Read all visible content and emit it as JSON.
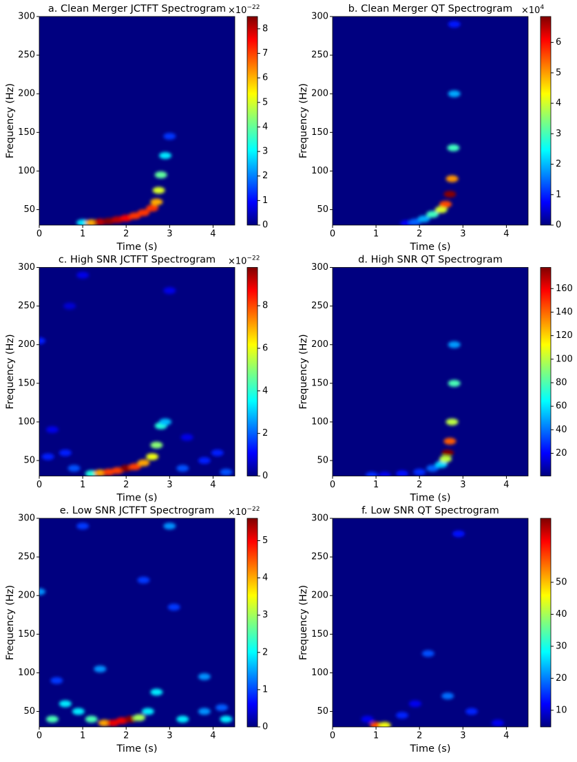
{
  "chart_data": [
    {
      "type": "spectrogram",
      "title": "a. Clean Merger JCTFT Spectrogram",
      "xlabel": "Time (s)",
      "ylabel": "Frequency (Hz)",
      "xlim": [
        0,
        4.5
      ],
      "xticks": [
        0,
        1,
        2,
        3,
        4
      ],
      "ylim": [
        30,
        300
      ],
      "yticks": [
        50,
        100,
        150,
        200,
        250,
        300
      ],
      "clim": [
        0,
        8.5
      ],
      "cticks": [
        0,
        1,
        2,
        3,
        4,
        5,
        6,
        7,
        8
      ],
      "colorbar_offset": {
        "base": "×10",
        "exponent": "−22"
      },
      "peaks": {
        "t": [
          1.0,
          1.2,
          1.4,
          1.6,
          1.8,
          2.0,
          2.2,
          2.4,
          2.6,
          2.7,
          2.75,
          2.8,
          2.9,
          3.0
        ],
        "f": [
          33,
          33,
          34,
          35,
          37,
          39,
          42,
          46,
          52,
          60,
          75,
          95,
          120,
          145
        ],
        "power": [
          3,
          6,
          8,
          8.4,
          8,
          7.5,
          7,
          7,
          7,
          6,
          5,
          4,
          3,
          1.5
        ]
      }
    },
    {
      "type": "spectrogram",
      "title": "b. Clean Merger QT Spectrogram",
      "xlabel": "Time (s)",
      "ylabel": "Frequency (Hz)",
      "xlim": [
        0,
        4.5
      ],
      "xticks": [
        0,
        1,
        2,
        3,
        4
      ],
      "ylim": [
        30,
        300
      ],
      "yticks": [
        50,
        100,
        150,
        200,
        250,
        300
      ],
      "clim": [
        0,
        6.85
      ],
      "cticks": [
        0,
        1,
        2,
        3,
        4,
        5,
        6
      ],
      "colorbar_offset": {
        "base": "×10",
        "exponent": "4"
      },
      "peaks": {
        "t": [
          1.7,
          1.9,
          2.1,
          2.3,
          2.5,
          2.6,
          2.7,
          2.75,
          2.78,
          2.8,
          2.8
        ],
        "f": [
          32,
          34,
          38,
          44,
          50,
          57,
          70,
          90,
          130,
          200,
          290
        ],
        "power": [
          0.8,
          1.5,
          2,
          3,
          4,
          5.5,
          6.8,
          5,
          3,
          2,
          1
        ]
      }
    },
    {
      "type": "spectrogram",
      "title": "c. High SNR JCTFT Spectrogram",
      "xlabel": "Time (s)",
      "ylabel": "Frequency (Hz)",
      "xlim": [
        0,
        4.5
      ],
      "xticks": [
        0,
        1,
        2,
        3,
        4
      ],
      "ylim": [
        30,
        300
      ],
      "yticks": [
        50,
        100,
        150,
        200,
        250,
        300
      ],
      "clim": [
        0,
        9.8
      ],
      "cticks": [
        0,
        2,
        4,
        6,
        8
      ],
      "colorbar_offset": {
        "base": "×10",
        "exponent": "−22"
      },
      "peaks": {
        "t": [
          1.2,
          1.4,
          1.6,
          1.8,
          2.0,
          2.2,
          2.4,
          2.6,
          2.7,
          2.8,
          2.9,
          0.2,
          0.6,
          0.8,
          0.3,
          3.3,
          3.8,
          4.1,
          4.3,
          0.0,
          1.0,
          3.0,
          3.4,
          0.7
        ],
        "f": [
          33,
          34,
          35,
          37,
          40,
          42,
          47,
          55,
          70,
          95,
          100,
          55,
          60,
          40,
          90,
          40,
          50,
          60,
          35,
          205,
          290,
          270,
          80,
          250
        ],
        "power": [
          4,
          7,
          8,
          8,
          9.7,
          8,
          7,
          6,
          5,
          4,
          3,
          1.5,
          1.5,
          2,
          1,
          2,
          1.5,
          1.5,
          2,
          1.5,
          1,
          1,
          1,
          0.8
        ]
      }
    },
    {
      "type": "spectrogram",
      "title": "d. High SNR QT Spectrogram",
      "xlabel": "Time (s)",
      "ylabel": "Frequency (Hz)",
      "xlim": [
        0,
        4.5
      ],
      "xticks": [
        0,
        1,
        2,
        3,
        4
      ],
      "ylim": [
        30,
        300
      ],
      "yticks": [
        50,
        100,
        150,
        200,
        250,
        300
      ],
      "clim": [
        0.7,
        178
      ],
      "cticks": [
        20,
        40,
        60,
        80,
        100,
        120,
        140,
        160
      ],
      "peaks": {
        "t": [
          0.9,
          1.2,
          1.6,
          2.0,
          2.3,
          2.5,
          2.6,
          2.65,
          2.7,
          2.75,
          2.8,
          2.8
        ],
        "f": [
          31,
          31,
          33,
          35,
          40,
          45,
          52,
          60,
          75,
          100,
          150,
          200
        ],
        "power": [
          30,
          20,
          25,
          30,
          40,
          60,
          100,
          178,
          140,
          100,
          80,
          50
        ]
      }
    },
    {
      "type": "spectrogram",
      "title": "e. Low SNR JCTFT Spectrogram",
      "xlabel": "Time (s)",
      "ylabel": "Frequency (Hz)",
      "xlim": [
        0,
        4.5
      ],
      "xticks": [
        0,
        1,
        2,
        3,
        4
      ],
      "ylim": [
        30,
        300
      ],
      "yticks": [
        50,
        100,
        150,
        200,
        250,
        300
      ],
      "clim": [
        0,
        5.6
      ],
      "cticks": [
        0,
        1,
        2,
        3,
        4,
        5
      ],
      "colorbar_offset": {
        "base": "×10",
        "exponent": "−22"
      },
      "peaks": {
        "t": [
          1.5,
          1.7,
          1.9,
          2.1,
          2.3,
          2.5,
          2.7,
          0.3,
          0.6,
          0.9,
          1.2,
          3.3,
          3.8,
          4.3,
          3.0,
          2.4,
          0.0,
          3.1,
          1.4,
          0.4,
          3.8,
          1.0,
          4.2
        ],
        "f": [
          35,
          35,
          38,
          40,
          42,
          50,
          75,
          40,
          60,
          50,
          40,
          40,
          95,
          40,
          290,
          220,
          205,
          185,
          105,
          90,
          50,
          290,
          55
        ],
        "power": [
          4,
          5,
          5,
          5.5,
          3,
          2,
          2,
          2.5,
          2,
          2,
          2.5,
          2,
          1.5,
          2,
          1.5,
          1,
          1.5,
          1,
          1.5,
          1,
          1.5,
          1,
          1.2
        ]
      }
    },
    {
      "type": "spectrogram",
      "title": "f. Low SNR QT Spectrogram",
      "xlabel": "Time (s)",
      "ylabel": "Frequency (Hz)",
      "xlim": [
        0,
        4.5
      ],
      "xticks": [
        0,
        1,
        2,
        3,
        4
      ],
      "ylim": [
        30,
        300
      ],
      "yticks": [
        50,
        100,
        150,
        200,
        250,
        300
      ],
      "clim": [
        4.8,
        70
      ],
      "cticks": [
        10,
        20,
        30,
        40,
        50
      ],
      "peaks": {
        "t": [
          1.0,
          1.2,
          2.65,
          2.2,
          1.6,
          3.2,
          0.8,
          3.8,
          2.9,
          1.9
        ],
        "f": [
          32,
          32,
          70,
          125,
          45,
          50,
          40,
          35,
          280,
          60
        ],
        "power": [
          57,
          45,
          20,
          18,
          15,
          15,
          12,
          12,
          14,
          12
        ]
      }
    }
  ]
}
